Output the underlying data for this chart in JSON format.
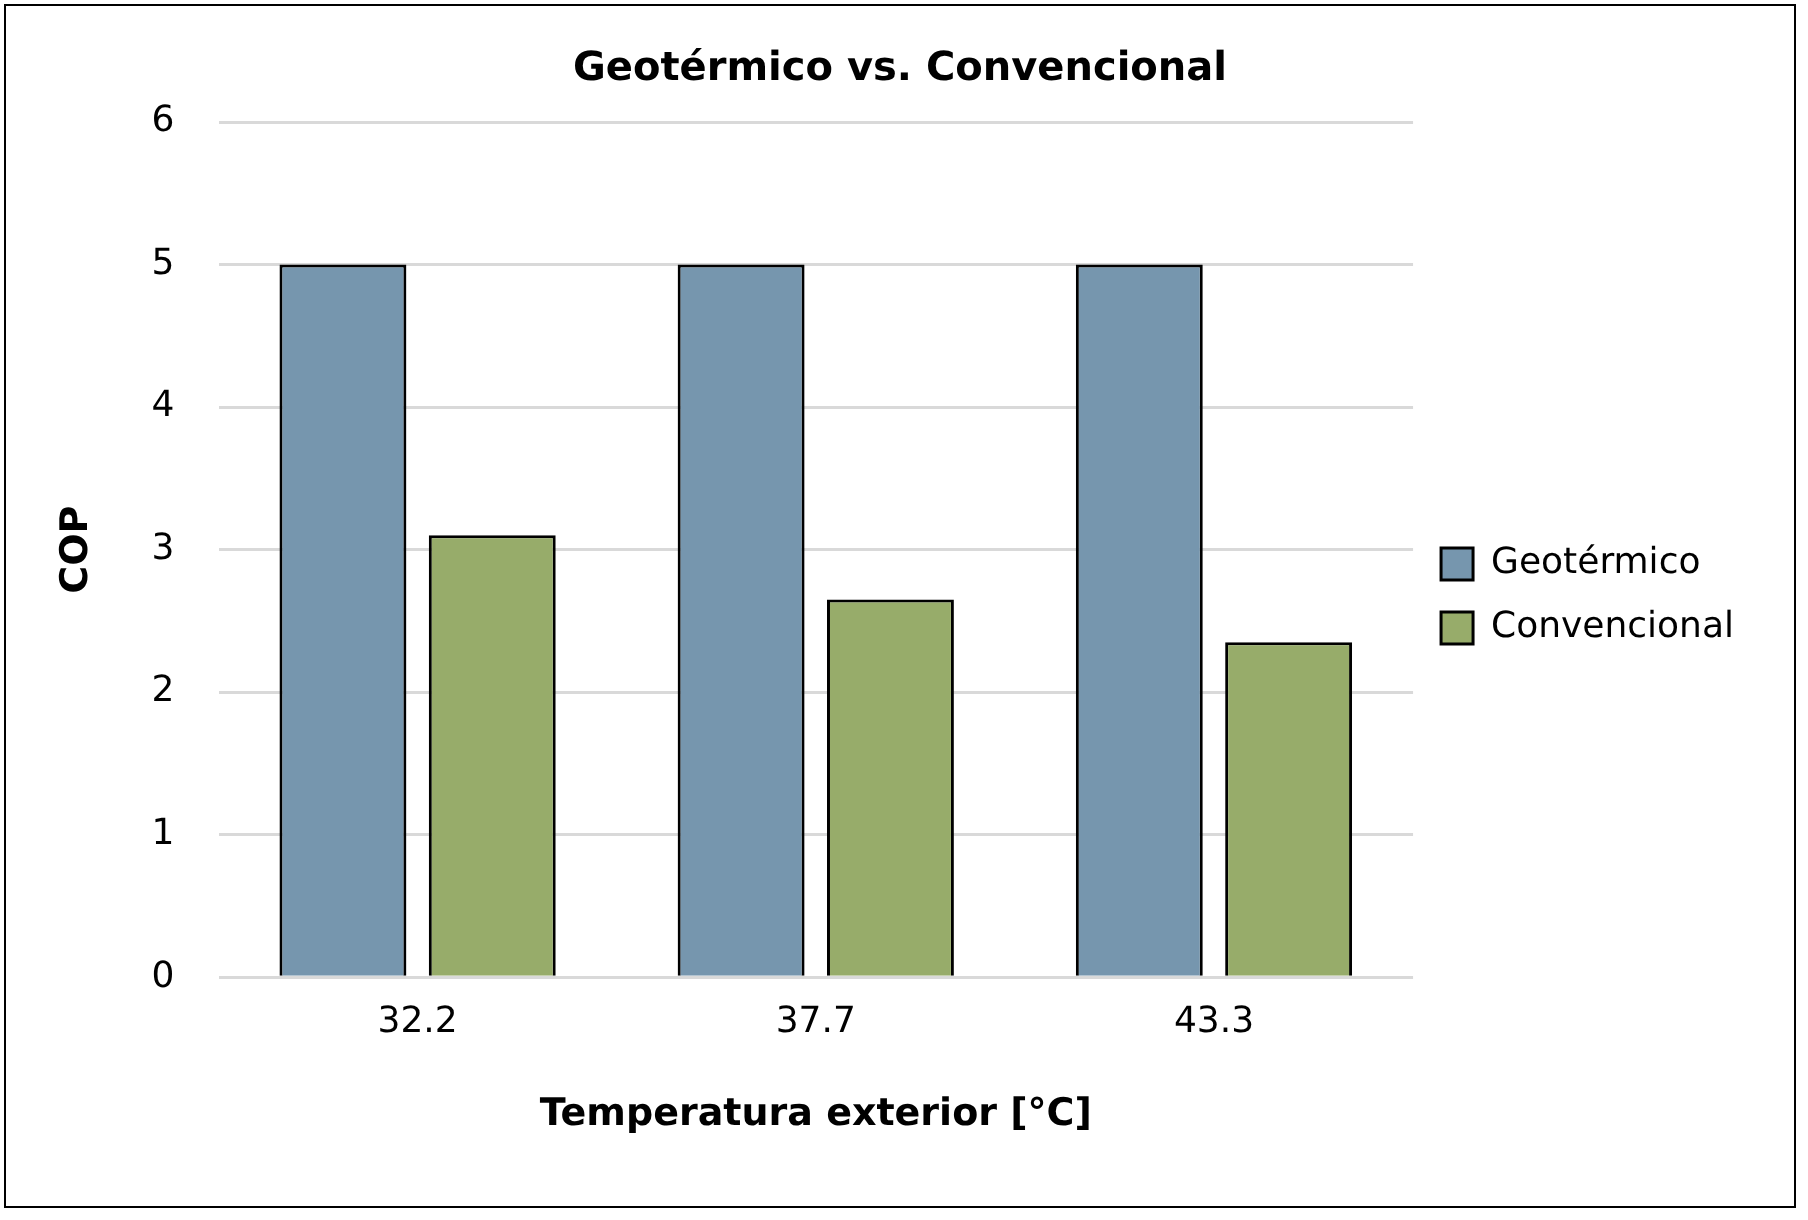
{
  "chart_data": {
    "type": "bar",
    "title": "Geotérmico vs. Convencional",
    "xlabel": "Temperatura exterior [°C]",
    "ylabel": "COP",
    "categories": [
      "32.2",
      "37.7",
      "43.3"
    ],
    "series": [
      {
        "name": "Geotérmico",
        "color": "#7696ae",
        "values": [
          5,
          5,
          5
        ]
      },
      {
        "name": "Convencional",
        "color": "#97ac6a",
        "values": [
          3.1,
          2.65,
          2.35
        ]
      }
    ],
    "ylim": [
      0,
      6
    ],
    "yticks": [
      0,
      1,
      2,
      3,
      4,
      5,
      6
    ],
    "grid": "y",
    "legend": "right"
  }
}
